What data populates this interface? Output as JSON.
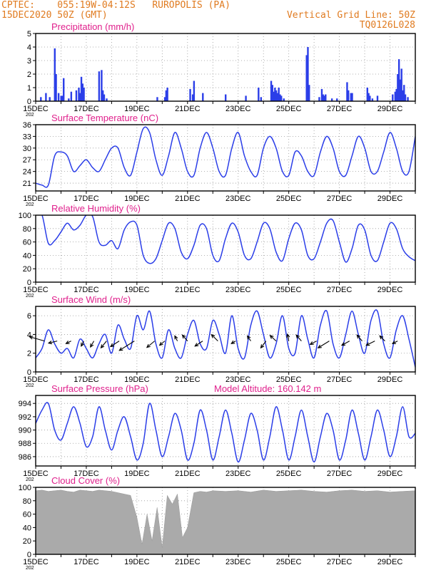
{
  "header": {
    "line1_left": "CPTEC:    055:19W-04:12S   RUROPOLIS (PA)",
    "line2_left": "15DEC2020 50Z (GMT)",
    "line1_right": "Vertical Grid Line: 50Z",
    "line2_right": "TQ0126L028",
    "colors": {
      "header": "#e07b20",
      "title": "#e0208c",
      "series": "#2b3ee8",
      "cloud": "#aaaaaa"
    }
  },
  "x_axis": {
    "tick_labels": [
      "15DEC",
      "17DEC",
      "19DEC",
      "21DEC",
      "23DEC",
      "25DEC",
      "27DEC",
      "29DEC"
    ],
    "year_stub": "202",
    "range_days": [
      0,
      15
    ]
  },
  "chart_data": [
    {
      "type": "bar",
      "title": "Precipitation (mm/h)",
      "ylim": [
        0,
        5
      ],
      "yticks": [
        "0",
        "1",
        "2",
        "3",
        "4",
        "5"
      ],
      "x": [
        0.2,
        0.4,
        0.55,
        0.75,
        0.8,
        0.9,
        1.0,
        1.05,
        1.1,
        1.3,
        1.4,
        1.6,
        1.7,
        1.75,
        1.8,
        1.85,
        1.9,
        2.5,
        2.6,
        2.65,
        2.7,
        2.8,
        4.8,
        5.1,
        5.15,
        5.2,
        6.1,
        6.2,
        6.25,
        6.6,
        7.5,
        8.3,
        8.8,
        8.9,
        9.3,
        9.35,
        9.4,
        9.45,
        9.5,
        9.55,
        9.6,
        9.65,
        9.7,
        9.8,
        10.7,
        10.75,
        10.8,
        11.2,
        11.3,
        11.35,
        11.4,
        11.45,
        11.7,
        11.9,
        12.3,
        12.35,
        12.45,
        12.5,
        13.1,
        13.15,
        13.2,
        13.3,
        13.5,
        14.1,
        14.2,
        14.25,
        14.3,
        14.35,
        14.4,
        14.45,
        14.5,
        14.55,
        14.6,
        14.7
      ],
      "values": [
        0.3,
        0.6,
        0.3,
        3.9,
        2.0,
        0.6,
        0.4,
        0.4,
        1.7,
        0.2,
        0.7,
        0.8,
        1.0,
        0.6,
        1.8,
        1.3,
        1.0,
        2.2,
        2.3,
        0.8,
        0.5,
        0.2,
        0.3,
        0.3,
        0.8,
        1.0,
        0.9,
        0.5,
        1.5,
        0.6,
        0.5,
        0.4,
        1.0,
        0.3,
        1.5,
        1.2,
        0.7,
        1.0,
        0.8,
        0.6,
        1.0,
        0.5,
        0.4,
        0.2,
        3.4,
        4.0,
        1.2,
        0.3,
        0.9,
        0.5,
        0.4,
        0.5,
        0.2,
        0.2,
        1.4,
        0.8,
        0.6,
        0.6,
        1.0,
        0.6,
        0.4,
        0.2,
        0.4,
        0.5,
        0.7,
        0.9,
        2.0,
        3.1,
        1.6,
        2.4,
        0.8,
        1.2,
        0.5,
        0.3
      ],
      "xlabel": "",
      "ylabel": ""
    },
    {
      "type": "line",
      "title": "Surface Temperature (nC)",
      "ylim": [
        19,
        36
      ],
      "yticks": [
        "21",
        "24",
        "27",
        "30",
        "33",
        "36"
      ],
      "x": [
        0,
        0.25,
        0.5,
        0.75,
        1.0,
        1.25,
        1.5,
        1.75,
        2.0,
        2.25,
        2.5,
        2.75,
        3.0,
        3.25,
        3.5,
        3.75,
        4.0,
        4.25,
        4.5,
        4.75,
        5.0,
        5.25,
        5.5,
        5.75,
        6.0,
        6.25,
        6.5,
        6.75,
        7.0,
        7.25,
        7.5,
        7.75,
        8.0,
        8.25,
        8.5,
        8.75,
        9.0,
        9.25,
        9.5,
        9.75,
        10.0,
        10.25,
        10.5,
        10.75,
        11.0,
        11.25,
        11.5,
        11.75,
        12.0,
        12.25,
        12.5,
        12.75,
        13.0,
        13.25,
        13.5,
        13.75,
        14.0,
        14.25,
        14.5,
        14.75,
        15.0
      ],
      "series": [
        {
          "values": [
            21,
            20.5,
            20.5,
            28,
            29,
            28,
            24,
            25.5,
            27,
            25,
            24,
            27,
            30,
            30,
            25,
            23,
            29,
            35,
            34,
            27,
            23,
            28,
            34,
            30,
            24,
            23,
            30,
            34,
            30,
            24,
            23,
            30,
            34,
            28,
            24,
            23,
            30,
            33,
            30,
            24,
            23,
            29,
            28,
            24,
            23,
            29,
            33,
            30,
            24,
            23,
            28,
            33,
            30,
            24,
            24,
            29,
            34,
            30,
            24,
            24,
            33
          ]
        }
      ],
      "xlabel": "",
      "ylabel": ""
    },
    {
      "type": "line",
      "title": "Relative Humidity (%)",
      "ylim": [
        0,
        100
      ],
      "yticks": [
        "0",
        "20",
        "40",
        "60",
        "80",
        "100"
      ],
      "x": [
        0,
        0.25,
        0.5,
        0.75,
        1.0,
        1.25,
        1.5,
        1.75,
        2.0,
        2.25,
        2.5,
        2.75,
        3.0,
        3.25,
        3.5,
        3.75,
        4.0,
        4.25,
        4.5,
        4.75,
        5.0,
        5.25,
        5.5,
        5.75,
        6.0,
        6.25,
        6.5,
        6.75,
        7.0,
        7.25,
        7.5,
        7.75,
        8.0,
        8.25,
        8.5,
        8.75,
        9.0,
        9.25,
        9.5,
        9.75,
        10.0,
        10.25,
        10.5,
        10.75,
        11.0,
        11.25,
        11.5,
        11.75,
        12.0,
        12.25,
        12.5,
        12.75,
        13.0,
        13.25,
        13.5,
        13.75,
        14.0,
        14.25,
        14.5,
        14.75,
        15.0
      ],
      "series": [
        {
          "values": [
            100,
            100,
            58,
            62,
            75,
            88,
            78,
            85,
            100,
            98,
            60,
            55,
            62,
            50,
            78,
            90,
            85,
            40,
            28,
            35,
            62,
            88,
            80,
            45,
            35,
            55,
            85,
            80,
            40,
            32,
            65,
            88,
            75,
            40,
            35,
            60,
            88,
            80,
            45,
            32,
            65,
            88,
            78,
            40,
            35,
            60,
            88,
            92,
            60,
            30,
            50,
            85,
            78,
            40,
            32,
            60,
            88,
            80,
            50,
            38,
            32
          ]
        }
      ],
      "xlabel": "",
      "ylabel": ""
    },
    {
      "type": "line",
      "title": "Surface Wind (m/s)",
      "ylim": [
        0,
        7
      ],
      "yticks": [
        "0",
        "2",
        "4",
        "6"
      ],
      "x": [
        0,
        0.25,
        0.5,
        0.75,
        1.0,
        1.25,
        1.5,
        1.75,
        2.0,
        2.25,
        2.5,
        2.75,
        3.0,
        3.25,
        3.5,
        3.75,
        4.0,
        4.25,
        4.5,
        4.75,
        5.0,
        5.25,
        5.5,
        5.75,
        6.0,
        6.25,
        6.5,
        6.75,
        7.0,
        7.25,
        7.5,
        7.75,
        8.0,
        8.25,
        8.5,
        8.75,
        9.0,
        9.25,
        9.5,
        9.75,
        10.0,
        10.25,
        10.5,
        10.75,
        11.0,
        11.25,
        11.5,
        11.75,
        12.0,
        12.25,
        12.5,
        12.75,
        13.0,
        13.25,
        13.5,
        13.75,
        14.0,
        14.25,
        14.5,
        14.75,
        15.0
      ],
      "series": [
        {
          "values": [
            1.5,
            2.5,
            4.5,
            3.0,
            2.0,
            2.5,
            1.5,
            3.5,
            2.5,
            1.5,
            3.0,
            4.0,
            2.0,
            5.0,
            3.5,
            2.5,
            6.0,
            4.5,
            6.5,
            3.0,
            1.5,
            4.5,
            2.5,
            1.5,
            4.0,
            5.5,
            3.0,
            2.5,
            5.5,
            4.0,
            2.0,
            6.0,
            2.5,
            1.5,
            5.0,
            6.5,
            4.0,
            1.5,
            3.0,
            6.0,
            2.5,
            2.0,
            6.0,
            3.5,
            1.5,
            5.0,
            6.5,
            3.0,
            1.5,
            4.0,
            6.5,
            4.0,
            2.0,
            5.5,
            6.5,
            3.0,
            1.5,
            4.5,
            6.0,
            3.5,
            0.5
          ]
        }
      ],
      "wind_arrows": [
        {
          "day": 0.35,
          "u": -3.5,
          "v": 1.0
        },
        {
          "day": 0.85,
          "u": -2.0,
          "v": -0.5
        },
        {
          "day": 1.4,
          "u": -1.2,
          "v": -0.6
        },
        {
          "day": 1.9,
          "u": -0.6,
          "v": -1.2
        },
        {
          "day": 2.3,
          "u": -0.8,
          "v": -1.4
        },
        {
          "day": 2.8,
          "u": -1.3,
          "v": -1.6
        },
        {
          "day": 3.3,
          "u": -2.0,
          "v": -1.3
        },
        {
          "day": 3.9,
          "u": -3.5,
          "v": -2.2
        },
        {
          "day": 4.7,
          "u": -1.8,
          "v": -1.5
        },
        {
          "day": 5.1,
          "u": -1.2,
          "v": -1.0
        },
        {
          "day": 5.6,
          "u": -0.6,
          "v": 1.2
        },
        {
          "day": 6.0,
          "u": -1.2,
          "v": 1.4
        },
        {
          "day": 6.6,
          "u": -1.8,
          "v": -1.2
        },
        {
          "day": 7.2,
          "u": -1.5,
          "v": 1.5
        },
        {
          "day": 7.9,
          "u": -1.0,
          "v": -0.6
        },
        {
          "day": 8.5,
          "u": -0.8,
          "v": 1.2
        },
        {
          "day": 9.1,
          "u": -1.2,
          "v": -1.6
        },
        {
          "day": 9.5,
          "u": -1.4,
          "v": 1.3
        },
        {
          "day": 10.0,
          "u": -0.3,
          "v": 1.6
        },
        {
          "day": 10.5,
          "u": -1.2,
          "v": 1.4
        },
        {
          "day": 11.1,
          "u": -1.5,
          "v": -0.8
        },
        {
          "day": 11.6,
          "u": -2.6,
          "v": -1.6
        },
        {
          "day": 12.4,
          "u": -1.8,
          "v": -1.0
        },
        {
          "day": 12.9,
          "u": -1.2,
          "v": 1.4
        },
        {
          "day": 13.4,
          "u": -2.0,
          "v": -1.0
        },
        {
          "day": 13.8,
          "u": -1.2,
          "v": 1.2
        },
        {
          "day": 14.3,
          "u": -1.2,
          "v": -0.6
        }
      ],
      "xlabel": "",
      "ylabel": ""
    },
    {
      "type": "line",
      "title": "Surface Pressure (hPa)",
      "annotation": "Model Altitude: 160.142 m",
      "ylim": [
        984.6,
        995.2
      ],
      "yticks": [
        "986",
        "988",
        "990",
        "992",
        "994"
      ],
      "x": [
        0,
        0.25,
        0.5,
        0.75,
        1.0,
        1.25,
        1.5,
        1.75,
        2.0,
        2.25,
        2.5,
        2.75,
        3.0,
        3.25,
        3.5,
        3.75,
        4.0,
        4.25,
        4.5,
        4.75,
        5.0,
        5.25,
        5.5,
        5.75,
        6.0,
        6.25,
        6.5,
        6.75,
        7.0,
        7.25,
        7.5,
        7.75,
        8.0,
        8.25,
        8.5,
        8.75,
        9.0,
        9.25,
        9.5,
        9.75,
        10.0,
        10.25,
        10.5,
        10.75,
        11.0,
        11.25,
        11.5,
        11.75,
        12.0,
        12.25,
        12.5,
        12.75,
        13.0,
        13.25,
        13.5,
        13.75,
        14.0,
        14.25,
        14.5,
        14.75,
        15.0
      ],
      "series": [
        {
          "values": [
            991,
            993,
            994,
            990,
            988.5,
            991,
            993.5,
            991,
            987.5,
            989,
            993.5,
            990,
            987,
            990,
            992,
            989,
            985.5,
            988,
            994,
            990,
            986,
            989,
            992.5,
            990,
            985.5,
            988,
            993,
            990,
            985.5,
            989,
            993,
            989.5,
            985.2,
            988.5,
            992.5,
            990,
            985.5,
            989,
            993.5,
            990,
            985.5,
            989,
            993,
            989,
            985.2,
            989,
            992.5,
            990,
            985.5,
            988.5,
            993,
            989.5,
            985.5,
            989,
            993,
            990,
            986,
            989,
            993.5,
            989,
            989.5
          ]
        }
      ],
      "xlabel": "",
      "ylabel": ""
    },
    {
      "type": "area",
      "title": "Cloud Cover (%)",
      "ylim": [
        0,
        100
      ],
      "yticks": [
        "0",
        "20",
        "40",
        "60",
        "80",
        "100"
      ],
      "x": [
        0,
        0.25,
        0.5,
        0.75,
        1.0,
        1.25,
        1.5,
        1.75,
        2.0,
        2.25,
        2.5,
        2.75,
        3.0,
        3.25,
        3.5,
        3.75,
        4.0,
        4.2,
        4.4,
        4.6,
        4.8,
        5.0,
        5.2,
        5.4,
        5.6,
        5.8,
        6.0,
        6.25,
        6.5,
        6.75,
        7.0,
        7.5,
        8.0,
        8.5,
        9.0,
        9.5,
        10.0,
        10.5,
        11.0,
        11.5,
        12.0,
        12.5,
        13.0,
        13.5,
        14.0,
        14.5,
        15.0
      ],
      "series": [
        {
          "values": [
            95,
            96,
            94,
            95,
            96,
            94,
            93,
            96,
            95,
            94,
            96,
            95,
            94,
            92,
            90,
            88,
            55,
            15,
            60,
            20,
            70,
            10,
            88,
            75,
            90,
            25,
            40,
            92,
            94,
            93,
            95,
            94,
            95,
            93,
            96,
            94,
            95,
            96,
            94,
            93,
            95,
            96,
            94,
            95,
            93,
            94,
            95
          ]
        }
      ],
      "xlabel": "",
      "ylabel": ""
    }
  ]
}
